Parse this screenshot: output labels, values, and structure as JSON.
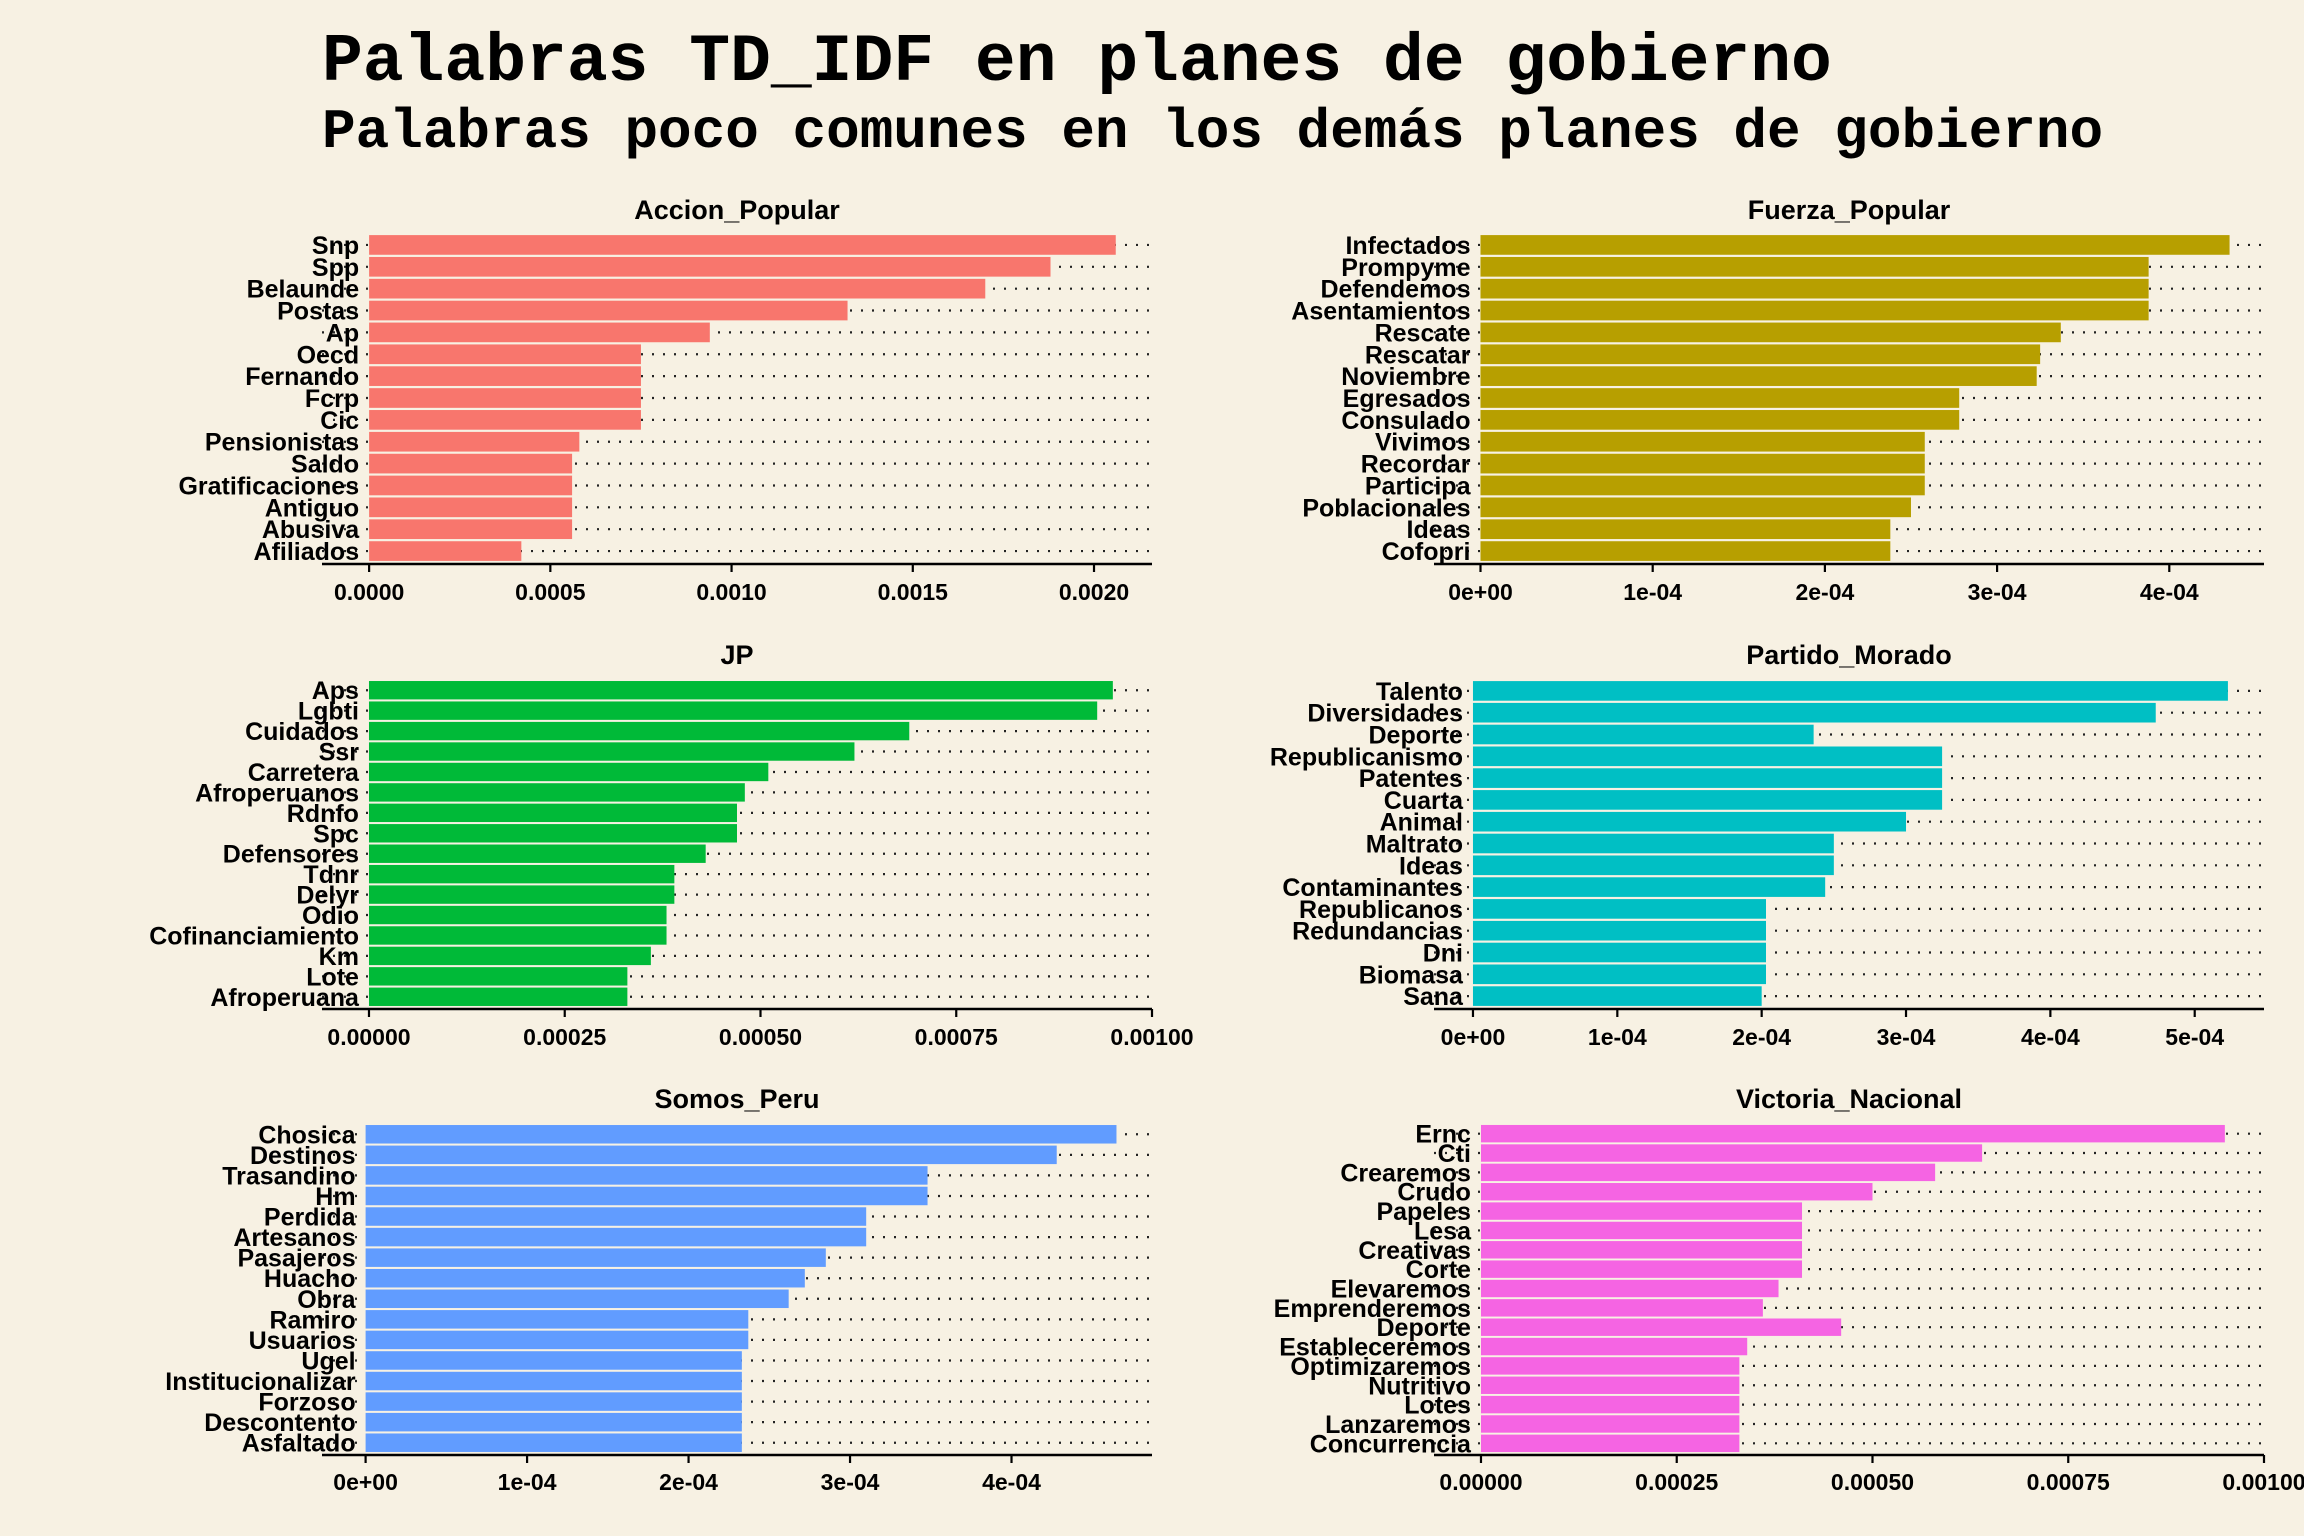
{
  "title": "Palabras TD_IDF en planes de gobierno",
  "subtitle": "Palabras poco comunes en los demás planes de gobierno",
  "chart_data": [
    {
      "type": "bar",
      "orientation": "horizontal",
      "title": "Accion_Popular",
      "color": "#f8766d",
      "categories": [
        "Snp",
        "Spp",
        "Belaunde",
        "Postas",
        "Ap",
        "Oecd",
        "Fernando",
        "Fcrp",
        "Cic",
        "Pensionistas",
        "Saldo",
        "Gratificaciones",
        "Antiguo",
        "Abusiva",
        "Afiliados"
      ],
      "values": [
        0.00206,
        0.00188,
        0.0017,
        0.00132,
        0.00094,
        0.00075,
        0.00075,
        0.00075,
        0.00075,
        0.00058,
        0.00056,
        0.00056,
        0.00056,
        0.00056,
        0.00042
      ],
      "xlim": [
        -0.00013,
        0.00216
      ],
      "xticks": [
        "0.0000",
        "0.0005",
        "0.0010",
        "0.0015",
        "0.0020"
      ],
      "xtick_values": [
        0,
        0.0005,
        0.001,
        0.0015,
        0.002
      ],
      "grid": "dotted horizontal"
    },
    {
      "type": "bar",
      "orientation": "horizontal",
      "title": "Fuerza_Popular",
      "color": "#b79f00",
      "categories": [
        "Infectados",
        "Prompyme",
        "Defendemos",
        "Asentamientos",
        "Rescate",
        "Rescatar",
        "Noviembre",
        "Egresados",
        "Consulado",
        "Vivimos",
        "Recordar",
        "Participa",
        "Poblacionales",
        "Ideas",
        "Cofopri"
      ],
      "values": [
        0.000435,
        0.000388,
        0.000388,
        0.000388,
        0.000337,
        0.000325,
        0.000323,
        0.000278,
        0.000278,
        0.000258,
        0.000258,
        0.000258,
        0.00025,
        0.000238,
        0.000238
      ],
      "xlim": [
        -2.7e-05,
        0.000455
      ],
      "xticks": [
        "0e+00",
        "1e-04",
        "2e-04",
        "3e-04",
        "4e-04"
      ],
      "xtick_values": [
        0,
        0.0001,
        0.0002,
        0.0003,
        0.0004
      ],
      "grid": "dotted horizontal"
    },
    {
      "type": "bar",
      "orientation": "horizontal",
      "title": "JP",
      "color": "#00ba38",
      "categories": [
        "Aps",
        "Lgbti",
        "Cuidados",
        "Ssr",
        "Carretera",
        "Afroperuanos",
        "Rdnfo",
        "Spc",
        "Defensores",
        "Tdnr",
        "Delyr",
        "Odio",
        "Cofinanciamiento",
        "Km",
        "Lote",
        "Afroperuana"
      ],
      "values": [
        0.00095,
        0.00093,
        0.00069,
        0.00062,
        0.00051,
        0.00048,
        0.00047,
        0.00047,
        0.00043,
        0.00039,
        0.00039,
        0.00038,
        0.00038,
        0.00036,
        0.00033,
        0.00033
      ],
      "xlim": [
        -6e-05,
        0.001
      ],
      "xticks": [
        "0.00000",
        "0.00025",
        "0.00050",
        "0.00075",
        "0.00100"
      ],
      "xtick_values": [
        0,
        0.00025,
        0.0005,
        0.00075,
        0.001
      ],
      "grid": "dotted horizontal"
    },
    {
      "type": "bar",
      "orientation": "horizontal",
      "title": "Partido_Morado",
      "color": "#00bfc4",
      "categories": [
        "Talento",
        "Diversidades",
        "Deporte",
        "Republicanismo",
        "Patentes",
        "Cuarta",
        "Animal",
        "Maltrato",
        "Ideas",
        "Contaminantes",
        "Republicanos",
        "Redundancias",
        "Dni",
        "Biomasa",
        "Sana"
      ],
      "values": [
        0.000523,
        0.000473,
        0.000236,
        0.000325,
        0.000325,
        0.000325,
        0.0003,
        0.00025,
        0.00025,
        0.000244,
        0.000203,
        0.000203,
        0.000203,
        0.000203,
        0.0002
      ],
      "xlim": [
        -2.7e-05,
        0.000548
      ],
      "xticks": [
        "0e+00",
        "1e-04",
        "2e-04",
        "3e-04",
        "4e-04",
        "5e-04"
      ],
      "xtick_values": [
        0,
        0.0001,
        0.0002,
        0.0003,
        0.0004,
        0.0005
      ],
      "grid": "dotted horizontal"
    },
    {
      "type": "bar",
      "orientation": "horizontal",
      "title": "Somos_Peru",
      "color": "#619cff",
      "categories": [
        "Chosica",
        "Destinos",
        "Trasandino",
        "Hm",
        "Perdida",
        "Artesanos",
        "Pasajeros",
        "Huacho",
        "Obra",
        "Ramiro",
        "Usuarios",
        "Ugel",
        "Institucionalizar",
        "Forzoso",
        "Descontento",
        "Asfaltado"
      ],
      "values": [
        0.000465,
        0.000428,
        0.000348,
        0.000348,
        0.00031,
        0.00031,
        0.000285,
        0.000272,
        0.000262,
        0.000237,
        0.000237,
        0.000233,
        0.000233,
        0.000233,
        0.000233,
        0.000233
      ],
      "xlim": [
        -2.7e-05,
        0.000487
      ],
      "xticks": [
        "0e+00",
        "1e-04",
        "2e-04",
        "3e-04",
        "4e-04"
      ],
      "xtick_values": [
        0,
        0.0001,
        0.0002,
        0.0003,
        0.0004
      ],
      "grid": "dotted horizontal"
    },
    {
      "type": "bar",
      "orientation": "horizontal",
      "title": "Victoria_Nacional",
      "color": "#f564e3",
      "categories": [
        "Ernc",
        "Cti",
        "Crearemos",
        "Crudo",
        "Papeles",
        "Lesa",
        "Creativas",
        "Corte",
        "Elevaremos",
        "Emprenderemos",
        "Deporte",
        "Estableceremos",
        "Optimizaremos",
        "Nutritivo",
        "Lotes",
        "Lanzaremos",
        "Concurrencia"
      ],
      "values": [
        0.00095,
        0.00064,
        0.00058,
        0.0005,
        0.00041,
        0.00041,
        0.00041,
        0.00041,
        0.00038,
        0.00036,
        0.00046,
        0.00034,
        0.00033,
        0.00033,
        0.00033,
        0.00033,
        0.00033
      ],
      "xlim": [
        -6e-05,
        0.001
      ],
      "xticks": [
        "0.00000",
        "0.00025",
        "0.00050",
        "0.00075",
        "0.00100"
      ],
      "xtick_values": [
        0,
        0.00025,
        0.0005,
        0.00075,
        0.001
      ],
      "grid": "dotted horizontal"
    }
  ]
}
